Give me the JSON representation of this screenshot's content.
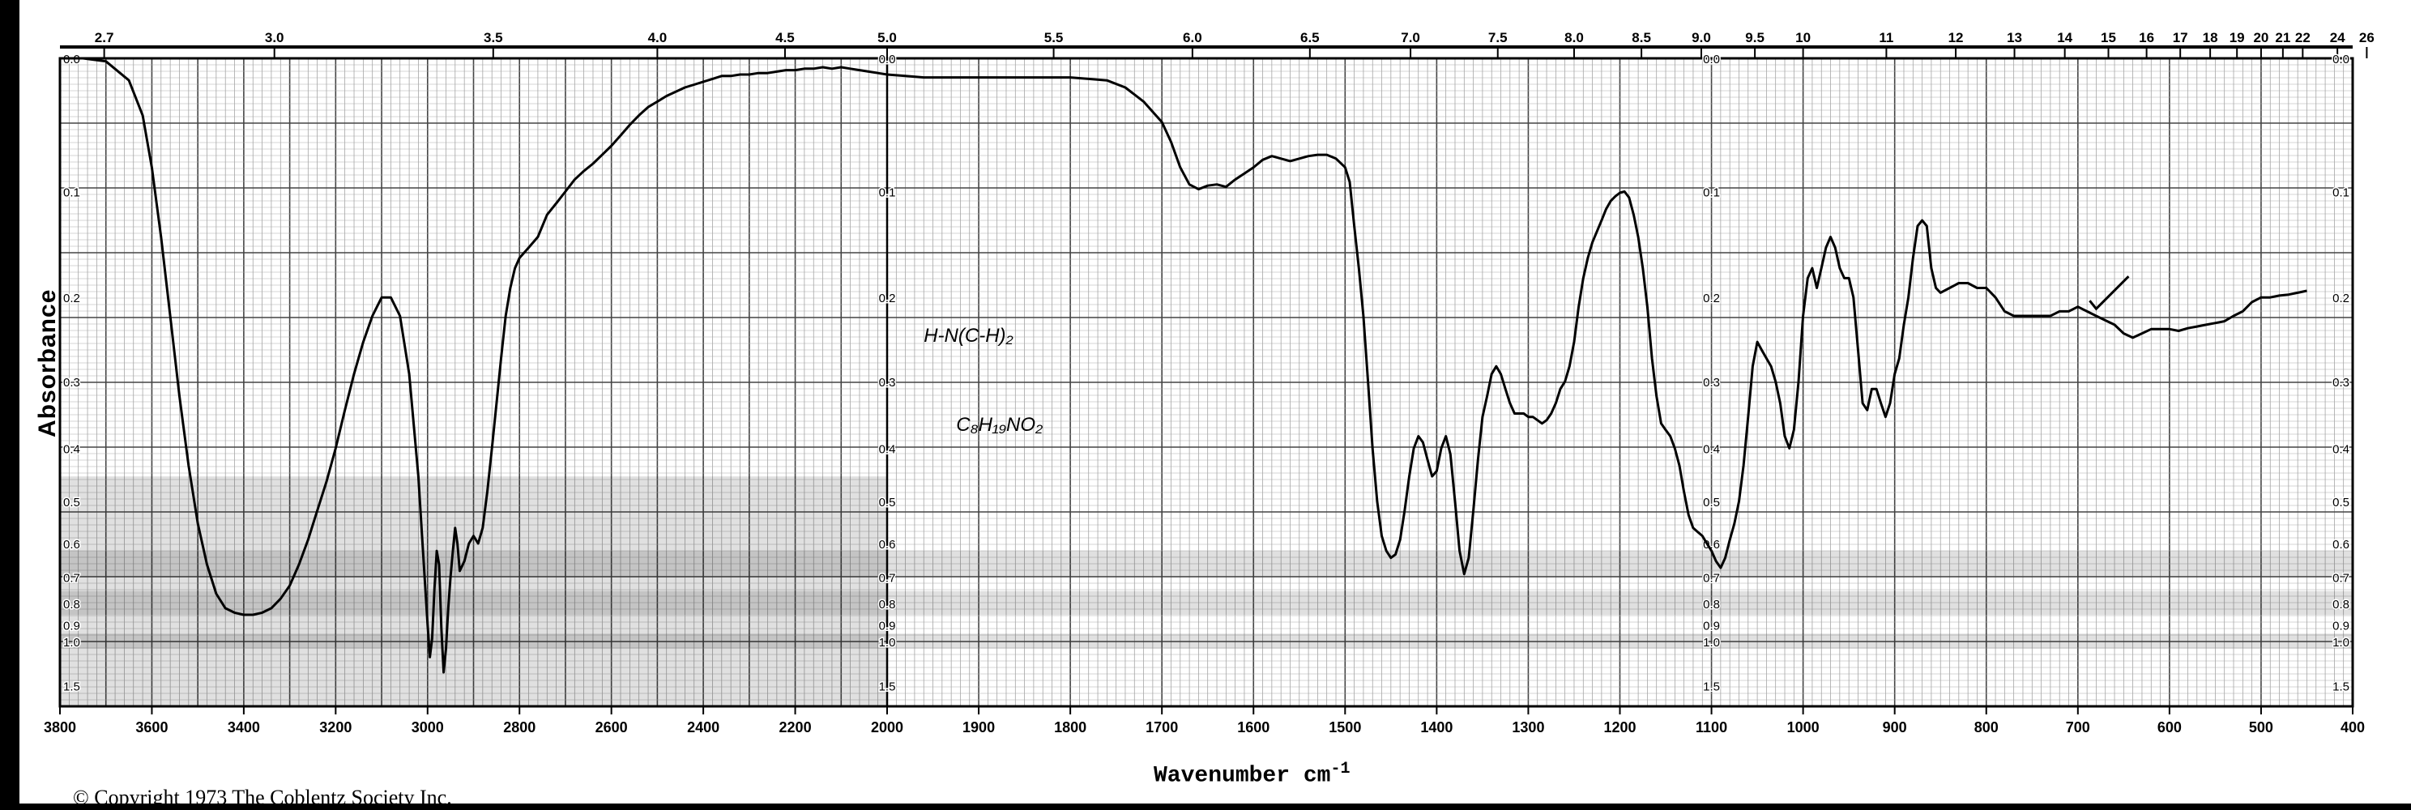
{
  "chart_data": {
    "type": "line",
    "ylabel": "Absorbance",
    "xlabel": "Wavenumber cm",
    "xlabel_superscript": "-1",
    "copyright": "© Copyright 1973  The Coblentz Society  Inc.",
    "xlim": [
      3800,
      400
    ],
    "x_scale_change_at": 2000,
    "wavenumber_ticks": [
      "3800",
      "3600",
      "3400",
      "3200",
      "3000",
      "2800",
      "2600",
      "2400",
      "2200",
      "2000",
      "1900",
      "1800",
      "1700",
      "1600",
      "1500",
      "1400",
      "1300",
      "1200",
      "1100",
      "1000",
      "900",
      "800",
      "700",
      "600",
      "500",
      "400"
    ],
    "wavelength_ticks": [
      {
        "label": "2.7",
        "value": 2.7
      },
      {
        "label": "3.0",
        "value": 3.0
      },
      {
        "label": "3.5",
        "value": 3.5
      },
      {
        "label": "4.0",
        "value": 4.0
      },
      {
        "label": "4.5",
        "value": 4.5
      },
      {
        "label": "5.0",
        "value": 5.0
      },
      {
        "label": "5.5",
        "value": 5.5
      },
      {
        "label": "6.0",
        "value": 6.0
      },
      {
        "label": "6.5",
        "value": 6.5
      },
      {
        "label": "7.0",
        "value": 7.0
      },
      {
        "label": "7.5",
        "value": 7.5
      },
      {
        "label": "8.0",
        "value": 8.0
      },
      {
        "label": "8.5",
        "value": 8.5
      },
      {
        "label": "9.0",
        "value": 9.0
      },
      {
        "label": "9.5",
        "value": 9.5
      },
      {
        "label": "10",
        "value": 10
      },
      {
        "label": "11",
        "value": 11
      },
      {
        "label": "12",
        "value": 12
      },
      {
        "label": "13",
        "value": 13
      },
      {
        "label": "14",
        "value": 14
      },
      {
        "label": "15",
        "value": 15
      },
      {
        "label": "16",
        "value": 16
      },
      {
        "label": "17",
        "value": 17
      },
      {
        "label": "18",
        "value": 18
      },
      {
        "label": "19",
        "value": 19
      },
      {
        "label": "20",
        "value": 20
      },
      {
        "label": "21",
        "value": 21
      },
      {
        "label": "22",
        "value": 22
      },
      {
        "label": "24",
        "value": 24
      },
      {
        "label": "26",
        "value": 26
      }
    ],
    "absorbance_scale": [
      {
        "label": "0.0",
        "value": 0.0
      },
      {
        "label": "0.1",
        "value": 0.1
      },
      {
        "label": "0.2",
        "value": 0.2
      },
      {
        "label": "0.3",
        "value": 0.3
      },
      {
        "label": "0.4",
        "value": 0.4
      },
      {
        "label": "0.5",
        "value": 0.5
      },
      {
        "label": "0.6",
        "value": 0.6
      },
      {
        "label": "0.7",
        "value": 0.7
      },
      {
        "label": "0.8",
        "value": 0.8
      },
      {
        "label": "0.9",
        "value": 0.9
      },
      {
        "label": "1.0",
        "value": 1.0
      },
      {
        "label": "1.5",
        "value": 1.5
      }
    ],
    "scale_label_at_wavenumbers": [
      3800,
      2000,
      1100,
      400
    ],
    "annotation_lines": [
      "H-N(C-H)₂",
      "C₈H₁₉NO₂"
    ],
    "series": [
      {
        "x": [
          3800,
          3750,
          3700,
          3650,
          3620,
          3600,
          3580,
          3560,
          3540,
          3520,
          3500,
          3480,
          3460,
          3440,
          3420,
          3400,
          3380,
          3360,
          3340,
          3320,
          3300,
          3280,
          3260,
          3240,
          3220,
          3200,
          3180,
          3160,
          3140,
          3120,
          3100,
          3080,
          3060,
          3040,
          3020,
          3010,
          3000,
          2995,
          2990,
          2985,
          2980,
          2975,
          2970,
          2965,
          2960,
          2955,
          2950,
          2945,
          2940,
          2935,
          2930,
          2920,
          2910,
          2900,
          2890,
          2880,
          2870,
          2860,
          2850,
          2840,
          2830,
          2820,
          2810,
          2800,
          2780,
          2760,
          2740,
          2720,
          2700,
          2680,
          2660,
          2640,
          2620,
          2600,
          2580,
          2560,
          2540,
          2520,
          2500,
          2480,
          2460,
          2440,
          2420,
          2400,
          2380,
          2360,
          2340,
          2320,
          2300,
          2280,
          2260,
          2240,
          2220,
          2200,
          2180,
          2160,
          2140,
          2120,
          2100,
          2080,
          2060,
          2040,
          2020,
          2000,
          1980,
          1960,
          1940,
          1920,
          1900,
          1880,
          1860,
          1840,
          1820,
          1800,
          1780,
          1760,
          1740,
          1720,
          1700,
          1690,
          1680,
          1670,
          1660,
          1650,
          1640,
          1630,
          1620,
          1610,
          1600,
          1590,
          1580,
          1570,
          1560,
          1550,
          1540,
          1530,
          1520,
          1510,
          1500,
          1495,
          1490,
          1485,
          1480,
          1475,
          1470,
          1465,
          1460,
          1455,
          1450,
          1445,
          1440,
          1435,
          1430,
          1425,
          1420,
          1415,
          1410,
          1405,
          1400,
          1395,
          1390,
          1385,
          1380,
          1375,
          1370,
          1365,
          1360,
          1355,
          1350,
          1345,
          1340,
          1335,
          1330,
          1325,
          1320,
          1315,
          1310,
          1305,
          1300,
          1295,
          1290,
          1285,
          1280,
          1275,
          1270,
          1265,
          1260,
          1255,
          1250,
          1245,
          1240,
          1235,
          1230,
          1225,
          1220,
          1215,
          1210,
          1205,
          1200,
          1195,
          1190,
          1185,
          1180,
          1175,
          1170,
          1165,
          1160,
          1155,
          1150,
          1145,
          1140,
          1135,
          1130,
          1125,
          1120,
          1115,
          1110,
          1105,
          1100,
          1095,
          1090,
          1085,
          1080,
          1075,
          1070,
          1065,
          1060,
          1055,
          1050,
          1045,
          1040,
          1035,
          1030,
          1025,
          1020,
          1015,
          1010,
          1005,
          1000,
          995,
          990,
          985,
          980,
          975,
          970,
          965,
          960,
          955,
          950,
          945,
          940,
          935,
          930,
          925,
          920,
          915,
          910,
          905,
          900,
          895,
          890,
          885,
          880,
          875,
          870,
          865,
          860,
          855,
          850,
          840,
          830,
          820,
          810,
          800,
          790,
          780,
          770,
          760,
          750,
          740,
          730,
          720,
          710,
          700,
          690,
          680,
          670,
          660,
          650,
          640,
          630,
          620,
          610,
          600,
          590,
          580,
          570,
          560,
          550,
          540,
          530,
          520,
          510,
          500,
          490,
          480,
          470,
          460,
          450
        ],
        "y": [
          0.0,
          0.0,
          0.002,
          0.015,
          0.04,
          0.08,
          0.14,
          0.22,
          0.32,
          0.43,
          0.55,
          0.66,
          0.76,
          0.82,
          0.84,
          0.85,
          0.85,
          0.84,
          0.82,
          0.78,
          0.73,
          0.66,
          0.59,
          0.52,
          0.46,
          0.4,
          0.34,
          0.29,
          0.25,
          0.22,
          0.2,
          0.2,
          0.22,
          0.29,
          0.45,
          0.62,
          0.9,
          1.12,
          0.98,
          0.74,
          0.62,
          0.66,
          0.92,
          1.28,
          1.05,
          0.82,
          0.7,
          0.62,
          0.56,
          0.6,
          0.68,
          0.65,
          0.6,
          0.58,
          0.6,
          0.56,
          0.48,
          0.4,
          0.33,
          0.27,
          0.22,
          0.19,
          0.17,
          0.16,
          0.15,
          0.14,
          0.12,
          0.11,
          0.1,
          0.09,
          0.083,
          0.077,
          0.07,
          0.063,
          0.055,
          0.047,
          0.04,
          0.034,
          0.03,
          0.026,
          0.023,
          0.02,
          0.018,
          0.016,
          0.014,
          0.012,
          0.012,
          0.011,
          0.011,
          0.01,
          0.01,
          0.009,
          0.008,
          0.008,
          0.007,
          0.007,
          0.006,
          0.007,
          0.006,
          0.007,
          0.008,
          0.009,
          0.01,
          0.011,
          0.012,
          0.013,
          0.013,
          0.013,
          0.013,
          0.013,
          0.013,
          0.013,
          0.013,
          0.013,
          0.014,
          0.015,
          0.02,
          0.03,
          0.045,
          0.06,
          0.08,
          0.094,
          0.098,
          0.095,
          0.094,
          0.096,
          0.09,
          0.085,
          0.08,
          0.074,
          0.071,
          0.073,
          0.075,
          0.073,
          0.071,
          0.07,
          0.07,
          0.073,
          0.08,
          0.092,
          0.13,
          0.17,
          0.22,
          0.3,
          0.4,
          0.5,
          0.58,
          0.62,
          0.64,
          0.63,
          0.59,
          0.52,
          0.45,
          0.4,
          0.38,
          0.39,
          0.42,
          0.45,
          0.44,
          0.4,
          0.38,
          0.41,
          0.5,
          0.62,
          0.69,
          0.64,
          0.52,
          0.42,
          0.35,
          0.32,
          0.29,
          0.28,
          0.29,
          0.31,
          0.33,
          0.345,
          0.345,
          0.345,
          0.35,
          0.35,
          0.355,
          0.36,
          0.355,
          0.345,
          0.33,
          0.31,
          0.3,
          0.28,
          0.25,
          0.21,
          0.18,
          0.16,
          0.145,
          0.135,
          0.125,
          0.115,
          0.108,
          0.104,
          0.101,
          0.1,
          0.105,
          0.12,
          0.14,
          0.17,
          0.21,
          0.27,
          0.32,
          0.36,
          0.37,
          0.38,
          0.4,
          0.43,
          0.48,
          0.53,
          0.56,
          0.57,
          0.58,
          0.6,
          0.62,
          0.65,
          0.67,
          0.64,
          0.59,
          0.55,
          0.5,
          0.43,
          0.35,
          0.28,
          0.25,
          0.26,
          0.27,
          0.28,
          0.3,
          0.33,
          0.38,
          0.4,
          0.37,
          0.3,
          0.22,
          0.18,
          0.17,
          0.19,
          0.17,
          0.15,
          0.14,
          0.15,
          0.17,
          0.18,
          0.18,
          0.2,
          0.26,
          0.33,
          0.34,
          0.31,
          0.31,
          0.33,
          0.35,
          0.33,
          0.29,
          0.27,
          0.23,
          0.2,
          0.16,
          0.13,
          0.125,
          0.13,
          0.17,
          0.19,
          0.195,
          0.19,
          0.185,
          0.185,
          0.19,
          0.19,
          0.2,
          0.215,
          0.22,
          0.22,
          0.22,
          0.22,
          0.22,
          0.215,
          0.215,
          0.21,
          0.215,
          0.22,
          0.225,
          0.23,
          0.24,
          0.245,
          0.24,
          0.235,
          0.235,
          0.235,
          0.237,
          0.234,
          0.232,
          0.23,
          0.228,
          0.226,
          0.22,
          0.215,
          0.205,
          0.2,
          0.2,
          0.198,
          0.197,
          0.195,
          0.193
        ]
      }
    ]
  }
}
